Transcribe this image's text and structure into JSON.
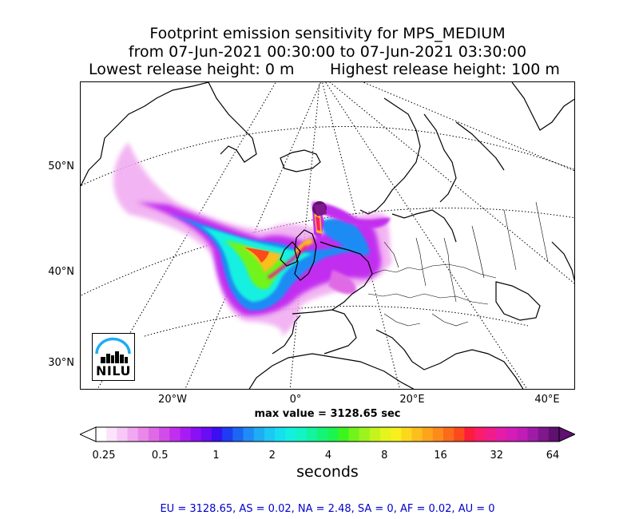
{
  "title": {
    "line1": "Footprint emission sensitivity for MPS_MEDIUM",
    "line2": "from 07-Jun-2021 00:30:00 to 07-Jun-2021 03:30:00",
    "release_low": "Lowest release height: 0 m",
    "release_high": "Highest release height: 100 m"
  },
  "map": {
    "lat_labels": [
      "50°N",
      "40°N",
      "30°N"
    ],
    "lon_labels": [
      "20°W",
      "0°",
      "20°E",
      "40°E"
    ],
    "logo_text": "NILU",
    "max_value": "max value = 3128.65 sec",
    "coastline_color": "#000000",
    "graticule_style": "dotted"
  },
  "colorbar": {
    "ticks": [
      "0.25",
      "0.5",
      "1",
      "2",
      "4",
      "8",
      "16",
      "32",
      "64"
    ],
    "unit": "seconds",
    "colors": [
      "#ffffff",
      "#fbe3fb",
      "#f7c8f7",
      "#f0a8f0",
      "#ea88ea",
      "#e06ae6",
      "#d24ce8",
      "#c22ef0",
      "#a81cf4",
      "#8c10f4",
      "#6a0cf4",
      "#3a10f0",
      "#1e3cf4",
      "#1c66f4",
      "#1e8cf4",
      "#1eacf4",
      "#1cc8f4",
      "#16e0f0",
      "#14f0e0",
      "#12f4c4",
      "#12f4a0",
      "#14f478",
      "#1cf450",
      "#3cf41e",
      "#70f41c",
      "#9cf41c",
      "#c4f41c",
      "#e4f41c",
      "#f8f01c",
      "#fcd81c",
      "#fcbe1c",
      "#fca41c",
      "#fc8a1c",
      "#fc6a1c",
      "#fc4a1c",
      "#fc1c3c",
      "#fc1c6c",
      "#f01c8c",
      "#e41ca8",
      "#d41cb8",
      "#c01cb8",
      "#a01ca8",
      "#80188c",
      "#601070"
    ]
  },
  "summary": "EU = 3128.65,  AS = 0.02,  NA = 2.48,  SA = 0,  AF = 0.02,  AU = 0"
}
